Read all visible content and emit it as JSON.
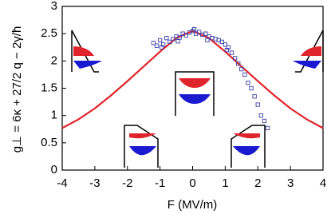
{
  "chart_data": {
    "type": "combo",
    "x_label": "F (MV/m)",
    "y_label": "g⊥ = 6κ + 27/2 q − 2γ/ħ",
    "xlim": [
      -4,
      4
    ],
    "ylim": [
      0,
      3
    ],
    "xticks": [
      -4,
      -3,
      -2,
      -1,
      0,
      1,
      2,
      3,
      4
    ],
    "yticks": [
      0,
      0.5,
      1,
      1.5,
      2,
      2.5,
      3
    ],
    "series": [
      {
        "type": "line",
        "color": "#e0242b",
        "x": [
          -4,
          -3.5,
          -3,
          -2.5,
          -2,
          -1.5,
          -1,
          -0.5,
          0,
          0.5,
          1,
          1.5,
          2,
          2.5,
          3,
          3.5,
          4
        ],
        "values": [
          0.77,
          0.93,
          1.13,
          1.37,
          1.63,
          1.9,
          2.17,
          2.42,
          2.55,
          2.42,
          2.17,
          1.9,
          1.63,
          1.37,
          1.13,
          0.93,
          0.77
        ]
      },
      {
        "type": "scatter",
        "color": "#3a3fa8",
        "x": [
          -1.2,
          -1.1,
          -1.0,
          -0.9,
          -0.8,
          -0.7,
          -0.6,
          -0.5,
          -0.4,
          -0.3,
          -0.2,
          -0.1,
          0,
          0.1,
          0.2,
          0.3,
          0.4,
          0.5,
          0.6,
          0.7,
          0.8,
          0.9,
          1.0,
          1.1,
          1.2,
          1.3,
          1.4,
          1.5,
          1.6,
          1.7,
          1.8,
          1.9,
          2.0,
          2.1,
          2.2,
          2.3,
          -0.95,
          -0.45,
          0.05,
          0.45,
          1.05
        ],
        "values": [
          2.33,
          2.28,
          2.38,
          2.3,
          2.42,
          2.35,
          2.4,
          2.45,
          2.43,
          2.5,
          2.47,
          2.52,
          2.55,
          2.5,
          2.53,
          2.48,
          2.5,
          2.45,
          2.42,
          2.4,
          2.38,
          2.35,
          2.3,
          2.25,
          2.15,
          2.05,
          1.95,
          1.85,
          1.75,
          1.6,
          1.5,
          1.35,
          1.2,
          1.0,
          0.9,
          0.77,
          2.25,
          2.36,
          2.58,
          2.38,
          2.2
        ]
      }
    ]
  }
}
